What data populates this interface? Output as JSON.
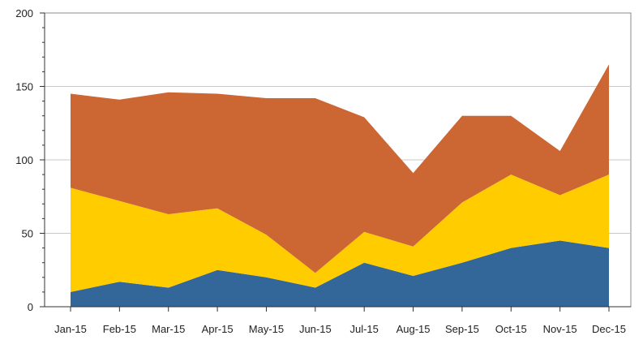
{
  "chart_data": {
    "type": "area",
    "stacked": true,
    "categories": [
      "Jan-15",
      "Feb-15",
      "Mar-15",
      "Apr-15",
      "May-15",
      "Jun-15",
      "Jul-15",
      "Aug-15",
      "Sep-15",
      "Oct-15",
      "Nov-15",
      "Dec-15"
    ],
    "series": [
      {
        "values": [
          10,
          17,
          13,
          25,
          20,
          13,
          30,
          21,
          30,
          40,
          45,
          40
        ],
        "color": "#336699"
      },
      {
        "values": [
          71,
          55,
          50,
          42,
          29,
          10,
          21,
          20,
          41,
          50,
          31,
          50
        ],
        "color": "#ffcc00"
      },
      {
        "values": [
          64,
          69,
          83,
          78,
          93,
          119,
          78,
          50,
          59,
          40,
          30,
          75
        ],
        "color": "#cc6633"
      }
    ],
    "ylim": [
      0,
      200
    ],
    "yticks": [
      0,
      50,
      100,
      150,
      200
    ],
    "ytick_labels": [
      "0",
      "50",
      "100",
      "150",
      "200"
    ],
    "grid": true,
    "legend": "none",
    "title": "",
    "xlabel": "",
    "ylabel": ""
  },
  "colors": {
    "grid": "#c8c8c8",
    "axis": "#333333",
    "frame": "#888888",
    "text": "#222222"
  }
}
